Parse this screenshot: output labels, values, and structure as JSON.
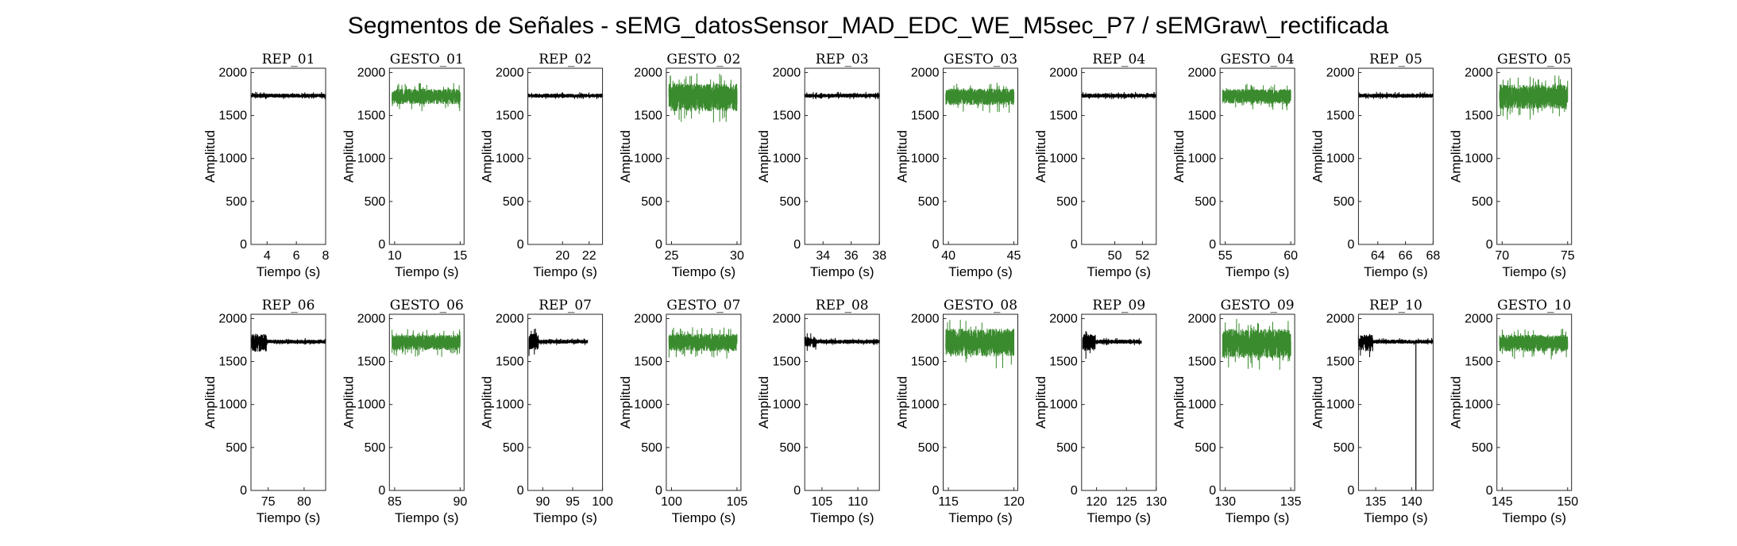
{
  "figure": {
    "title": "Segmentos de Señales - sEMG_datosSensor_MAD_EDC_WE_M5sec_P7 / sEMGraw\\_rectificada"
  },
  "colors": {
    "rep": "#000000",
    "gesto": "#3a8a2e"
  },
  "chart_data": [
    {
      "type": "line",
      "title": "REP_01",
      "xlabel": "Tiempo (s)",
      "ylabel": "Amplitud",
      "xlim": [
        2.9,
        8.0
      ],
      "ylim": [
        0,
        2050
      ],
      "xticks": [
        4,
        6,
        8
      ],
      "yticks": [
        0,
        500,
        1000,
        1500,
        2000
      ],
      "series": [
        {
          "kind": "rep",
          "values": [
            [
              2.9,
              1730
            ],
            [
              8.0,
              1730
            ]
          ],
          "range": [
            1690,
            1775
          ]
        }
      ]
    },
    {
      "type": "line",
      "title": "GESTO_01",
      "xlabel": "Tiempo (s)",
      "ylabel": "Amplitud",
      "xlim": [
        9.6,
        15.3
      ],
      "ylim": [
        0,
        2050
      ],
      "xticks": [
        10,
        15
      ],
      "yticks": [
        0,
        500,
        1000,
        1500,
        2000
      ],
      "series": [
        {
          "kind": "gesto",
          "values": [
            [
              9.8,
              1730
            ],
            [
              15.0,
              1730
            ]
          ],
          "range": [
            1550,
            1880
          ]
        }
      ]
    },
    {
      "type": "line",
      "title": "REP_02",
      "xlabel": "Tiempo (s)",
      "ylabel": "Amplitud",
      "xlim": [
        17.4,
        23.0
      ],
      "ylim": [
        0,
        2050
      ],
      "xticks": [
        20,
        22
      ],
      "yticks": [
        0,
        500,
        1000,
        1500,
        2000
      ],
      "series": [
        {
          "kind": "rep",
          "values": [
            [
              17.4,
              1730
            ],
            [
              23.0,
              1730
            ]
          ],
          "range": [
            1690,
            1775
          ]
        }
      ]
    },
    {
      "type": "line",
      "title": "GESTO_02",
      "xlabel": "Tiempo (s)",
      "ylabel": "Amplitud",
      "xlim": [
        24.6,
        30.3
      ],
      "ylim": [
        0,
        2050
      ],
      "xticks": [
        25,
        30
      ],
      "yticks": [
        0,
        500,
        1000,
        1500,
        2000
      ],
      "series": [
        {
          "kind": "gesto",
          "values": [
            [
              24.8,
              1730
            ],
            [
              30.0,
              1730
            ]
          ],
          "range": [
            1400,
            1990
          ]
        }
      ]
    },
    {
      "type": "line",
      "title": "REP_03",
      "xlabel": "Tiempo (s)",
      "ylabel": "Amplitud",
      "xlim": [
        32.7,
        38.0
      ],
      "ylim": [
        0,
        2050
      ],
      "xticks": [
        34,
        36,
        38
      ],
      "yticks": [
        0,
        500,
        1000,
        1500,
        2000
      ],
      "series": [
        {
          "kind": "rep",
          "values": [
            [
              32.7,
              1730
            ],
            [
              38.0,
              1730
            ]
          ],
          "range": [
            1690,
            1775
          ]
        }
      ]
    },
    {
      "type": "line",
      "title": "GESTO_03",
      "xlabel": "Tiempo (s)",
      "ylabel": "Amplitud",
      "xlim": [
        39.6,
        45.3
      ],
      "ylim": [
        0,
        2050
      ],
      "xticks": [
        40,
        45
      ],
      "yticks": [
        0,
        500,
        1000,
        1500,
        2000
      ],
      "series": [
        {
          "kind": "gesto",
          "values": [
            [
              39.8,
              1730
            ],
            [
              45.0,
              1730
            ]
          ],
          "range": [
            1530,
            1880
          ]
        }
      ]
    },
    {
      "type": "line",
      "title": "REP_04",
      "xlabel": "Tiempo (s)",
      "ylabel": "Amplitud",
      "xlim": [
        47.6,
        53.0
      ],
      "ylim": [
        0,
        2050
      ],
      "xticks": [
        50,
        52
      ],
      "yticks": [
        0,
        500,
        1000,
        1500,
        2000
      ],
      "series": [
        {
          "kind": "rep",
          "values": [
            [
              47.6,
              1730
            ],
            [
              53.0,
              1730
            ]
          ],
          "range": [
            1690,
            1775
          ]
        }
      ]
    },
    {
      "type": "line",
      "title": "GESTO_04",
      "xlabel": "Tiempo (s)",
      "ylabel": "Amplitud",
      "xlim": [
        54.6,
        60.3
      ],
      "ylim": [
        0,
        2050
      ],
      "xticks": [
        55,
        60
      ],
      "yticks": [
        0,
        500,
        1000,
        1500,
        2000
      ],
      "series": [
        {
          "kind": "gesto",
          "values": [
            [
              54.8,
              1730
            ],
            [
              60.0,
              1730
            ]
          ],
          "range": [
            1560,
            1870
          ]
        }
      ]
    },
    {
      "type": "line",
      "title": "REP_05",
      "xlabel": "Tiempo (s)",
      "ylabel": "Amplitud",
      "xlim": [
        62.6,
        68.0
      ],
      "ylim": [
        0,
        2050
      ],
      "xticks": [
        64,
        66,
        68
      ],
      "yticks": [
        0,
        500,
        1000,
        1500,
        2000
      ],
      "series": [
        {
          "kind": "rep",
          "values": [
            [
              62.6,
              1730
            ],
            [
              68.0,
              1730
            ]
          ],
          "range": [
            1690,
            1775
          ]
        }
      ]
    },
    {
      "type": "line",
      "title": "GESTO_05",
      "xlabel": "Tiempo (s)",
      "ylabel": "Amplitud",
      "xlim": [
        69.6,
        75.3
      ],
      "ylim": [
        0,
        2050
      ],
      "xticks": [
        70,
        75
      ],
      "yticks": [
        0,
        500,
        1000,
        1500,
        2000
      ],
      "series": [
        {
          "kind": "gesto",
          "values": [
            [
              69.8,
              1730
            ],
            [
              75.0,
              1730
            ]
          ],
          "range": [
            1450,
            1970
          ]
        }
      ]
    },
    {
      "type": "line",
      "title": "REP_06",
      "xlabel": "Tiempo (s)",
      "ylabel": "Amplitud",
      "xlim": [
        72.6,
        83.0
      ],
      "ylim": [
        0,
        2050
      ],
      "xticks": [
        75,
        80
      ],
      "yticks": [
        0,
        500,
        1000,
        1500,
        2000
      ],
      "series": [
        {
          "kind": "rep",
          "values": [
            [
              72.6,
              1730
            ],
            [
              83.0,
              1730
            ]
          ],
          "range": [
            1690,
            1775
          ],
          "burst": {
            "end": 74.8,
            "range": [
              1520,
              1900
            ]
          }
        }
      ]
    },
    {
      "type": "line",
      "title": "GESTO_06",
      "xlabel": "Tiempo (s)",
      "ylabel": "Amplitud",
      "xlim": [
        84.6,
        90.3
      ],
      "ylim": [
        0,
        2050
      ],
      "xticks": [
        85,
        90
      ],
      "yticks": [
        0,
        500,
        1000,
        1500,
        2000
      ],
      "series": [
        {
          "kind": "gesto",
          "values": [
            [
              84.8,
              1730
            ],
            [
              90.0,
              1730
            ]
          ],
          "range": [
            1550,
            1880
          ]
        }
      ]
    },
    {
      "type": "line",
      "title": "REP_07",
      "xlabel": "Tiempo (s)",
      "ylabel": "Amplitud",
      "xlim": [
        87.5,
        100.0
      ],
      "ylim": [
        0,
        2050
      ],
      "xticks": [
        90,
        95,
        100
      ],
      "yticks": [
        0,
        500,
        1000,
        1500,
        2000
      ],
      "series": [
        {
          "kind": "rep",
          "values": [
            [
              87.7,
              1730
            ],
            [
              97.5,
              1730
            ]
          ],
          "range": [
            1690,
            1775
          ],
          "burst": {
            "end": 89.3,
            "range": [
              1550,
              1900
            ]
          }
        }
      ]
    },
    {
      "type": "line",
      "title": "GESTO_07",
      "xlabel": "Tiempo (s)",
      "ylabel": "Amplitud",
      "xlim": [
        99.6,
        105.3
      ],
      "ylim": [
        0,
        2050
      ],
      "xticks": [
        100,
        105
      ],
      "yticks": [
        0,
        500,
        1000,
        1500,
        2000
      ],
      "series": [
        {
          "kind": "gesto",
          "values": [
            [
              99.8,
              1730
            ],
            [
              105.0,
              1730
            ]
          ],
          "range": [
            1530,
            1900
          ]
        }
      ]
    },
    {
      "type": "line",
      "title": "REP_08",
      "xlabel": "Tiempo (s)",
      "ylabel": "Amplitud",
      "xlim": [
        102.6,
        113.0
      ],
      "ylim": [
        0,
        2050
      ],
      "xticks": [
        105,
        110
      ],
      "yticks": [
        0,
        500,
        1000,
        1500,
        2000
      ],
      "series": [
        {
          "kind": "rep",
          "values": [
            [
              102.6,
              1730
            ],
            [
              113.0,
              1730
            ]
          ],
          "range": [
            1690,
            1775
          ],
          "burst": {
            "end": 104.2,
            "range": [
              1610,
              1850
            ]
          }
        }
      ]
    },
    {
      "type": "line",
      "title": "GESTO_08",
      "xlabel": "Tiempo (s)",
      "ylabel": "Amplitud",
      "xlim": [
        114.6,
        120.3
      ],
      "ylim": [
        0,
        2050
      ],
      "xticks": [
        115,
        120
      ],
      "yticks": [
        0,
        500,
        1000,
        1500,
        2000
      ],
      "series": [
        {
          "kind": "gesto",
          "values": [
            [
              114.8,
              1730
            ],
            [
              120.0,
              1730
            ]
          ],
          "range": [
            1420,
            2010
          ]
        }
      ]
    },
    {
      "type": "line",
      "title": "REP_09",
      "xlabel": "Tiempo (s)",
      "ylabel": "Amplitud",
      "xlim": [
        117.5,
        130.0
      ],
      "ylim": [
        0,
        2050
      ],
      "xticks": [
        120,
        125,
        130
      ],
      "yticks": [
        0,
        500,
        1000,
        1500,
        2000
      ],
      "series": [
        {
          "kind": "rep",
          "values": [
            [
              117.7,
              1730
            ],
            [
              127.5,
              1730
            ]
          ],
          "range": [
            1690,
            1775
          ],
          "burst": {
            "end": 119.8,
            "range": [
              1530,
              1880
            ]
          }
        }
      ]
    },
    {
      "type": "line",
      "title": "GESTO_09",
      "xlabel": "Tiempo (s)",
      "ylabel": "Amplitud",
      "xlim": [
        129.6,
        135.3
      ],
      "ylim": [
        0,
        2050
      ],
      "xticks": [
        130,
        135
      ],
      "yticks": [
        0,
        500,
        1000,
        1500,
        2000
      ],
      "series": [
        {
          "kind": "gesto",
          "values": [
            [
              129.8,
              1730
            ],
            [
              135.0,
              1730
            ]
          ],
          "range": [
            1380,
            2000
          ]
        }
      ]
    },
    {
      "type": "line",
      "title": "REP_10",
      "xlabel": "Tiempo (s)",
      "ylabel": "Amplitud",
      "xlim": [
        132.6,
        143.0
      ],
      "ylim": [
        0,
        2050
      ],
      "xticks": [
        135,
        140
      ],
      "yticks": [
        0,
        500,
        1000,
        1500,
        2000
      ],
      "series": [
        {
          "kind": "rep",
          "values": [
            [
              132.6,
              1730
            ],
            [
              143.0,
              1730
            ]
          ],
          "range": [
            1690,
            1775
          ],
          "burst": {
            "end": 134.6,
            "range": [
              1530,
              1880
            ]
          },
          "spike": {
            "x": 140.6,
            "y": 0
          }
        }
      ]
    },
    {
      "type": "line",
      "title": "GESTO_10",
      "xlabel": "Tiempo (s)",
      "ylabel": "Amplitud",
      "xlim": [
        144.6,
        150.3
      ],
      "ylim": [
        0,
        2050
      ],
      "xticks": [
        145,
        150
      ],
      "yticks": [
        0,
        500,
        1000,
        1500,
        2000
      ],
      "series": [
        {
          "kind": "gesto",
          "values": [
            [
              144.8,
              1730
            ],
            [
              150.0,
              1730
            ]
          ],
          "range": [
            1520,
            1880
          ]
        }
      ]
    }
  ]
}
